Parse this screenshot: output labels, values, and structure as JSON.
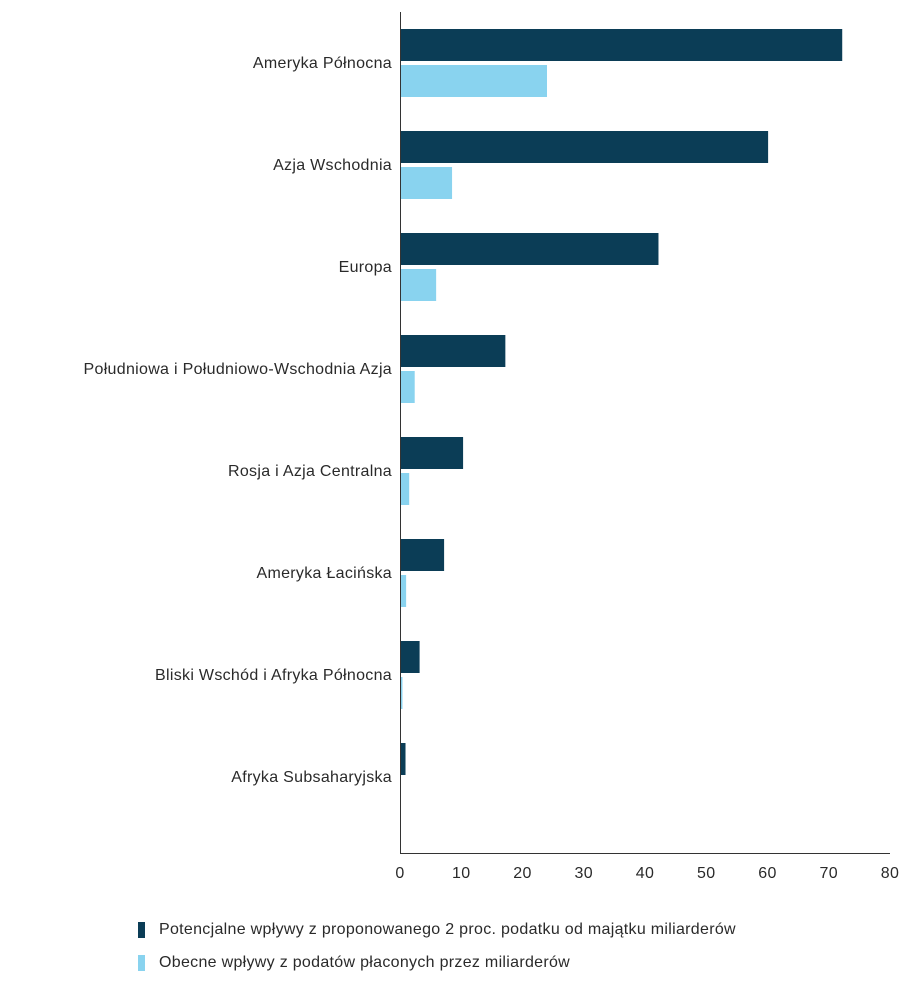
{
  "chart_data": {
    "type": "bar",
    "orientation": "horizontal",
    "categories": [
      "Ameryka Północna",
      "Azja Wschodnia",
      "Europa",
      "Południowa i Południowo-Wschodnia Azja",
      "Rosja i Azja Centralna",
      "Ameryka Łacińska",
      "Bliski Wschód i Afryka Północna",
      "Afryka Subsaharyjska"
    ],
    "series": [
      {
        "name": "Potencjalne wpływy z proponowanego 2 proc. podatku od majątku miliarderów",
        "color": "#0b3d56",
        "values": [
          72.2,
          60.1,
          42.2,
          17.2,
          10.3,
          7.2,
          3.2,
          0.9
        ]
      },
      {
        "name": "Obecne wpływy z podatów płaconych przez miliarderów",
        "color": "#89d3ef",
        "values": [
          24.0,
          8.5,
          5.9,
          2.4,
          1.5,
          1.0,
          0.4,
          0.1
        ]
      }
    ],
    "xlim": [
      0,
      80
    ],
    "xticks": [
      "0",
      "10",
      "20",
      "30",
      "40",
      "50",
      "60",
      "70",
      "80"
    ],
    "grid": false,
    "legend_position": "bottom"
  }
}
